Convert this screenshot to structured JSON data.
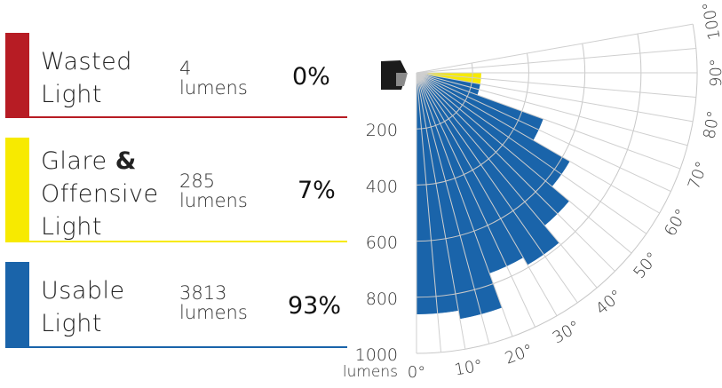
{
  "legend": [
    {
      "label_lines": [
        "Wasted",
        "Light"
      ],
      "lumens_value": "4",
      "lumens_unit": "lumens",
      "percent": "0%",
      "color": "#b71c24"
    },
    {
      "label_lines": [
        "Glare",
        "Offensive",
        "Light"
      ],
      "label_amp": "&",
      "lumens_value": "285",
      "lumens_unit": "lumens",
      "percent": "7%",
      "color": "#f7ea00"
    },
    {
      "label_lines": [
        "Usable",
        "Light"
      ],
      "lumens_value": "3813",
      "lumens_unit": "lumens",
      "percent": "93%",
      "color": "#1a64aa"
    }
  ],
  "chart_data": {
    "type": "polar-bar",
    "radial_ticks": [
      "200",
      "400",
      "600",
      "800",
      "1000"
    ],
    "radial_unit": "lumens",
    "radial_max": 1000,
    "angle_ticks": [
      "0°",
      "10°",
      "20°",
      "30°",
      "40°",
      "50°",
      "60°",
      "70°",
      "80°",
      "90°",
      "100°"
    ],
    "angle_range": [
      0,
      100
    ],
    "grid": true,
    "series": [
      {
        "category": "usable",
        "color": "#1a64aa",
        "bins": [
          {
            "from": 0,
            "to": 10,
            "value": 860
          },
          {
            "from": 10,
            "to": 20,
            "value": 890
          },
          {
            "from": 20,
            "to": 30,
            "value": 760
          },
          {
            "from": 30,
            "to": 40,
            "value": 790
          },
          {
            "from": 40,
            "to": 50,
            "value": 710
          },
          {
            "from": 50,
            "to": 60,
            "value": 630
          },
          {
            "from": 60,
            "to": 70,
            "value": 480
          },
          {
            "from": 70,
            "to": 80,
            "value": 230
          }
        ]
      },
      {
        "category": "glare",
        "color": "#f7ea00",
        "bins": [
          {
            "from": 80,
            "to": 90,
            "value": 230
          }
        ]
      },
      {
        "category": "wasted",
        "color": "#b71c24",
        "bins": [
          {
            "from": 90,
            "to": 100,
            "value": 2
          }
        ]
      }
    ]
  },
  "fixture_icon": "wall-pack-light-icon"
}
